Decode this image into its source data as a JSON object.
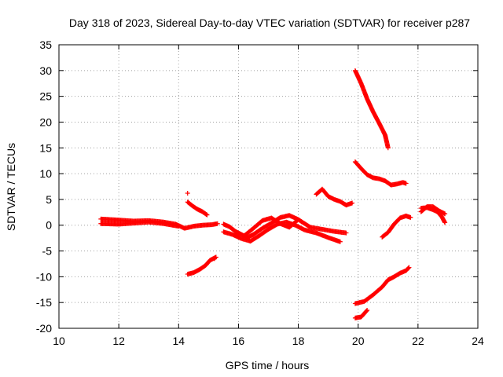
{
  "chart_data": {
    "type": "scatter",
    "title": "Day 318 of 2023, Sidereal Day-to-day VTEC variation (SDTVAR) for receiver p287",
    "xlabel": "GPS time / hours",
    "ylabel": "SDTVAR / TECUs",
    "xlim": [
      10,
      24
    ],
    "ylim": [
      -20,
      35
    ],
    "xticks": [
      10,
      12,
      14,
      16,
      18,
      20,
      22,
      24
    ],
    "yticks": [
      -20,
      -15,
      -10,
      -5,
      0,
      5,
      10,
      15,
      20,
      25,
      30,
      35
    ],
    "grid": true,
    "marker": "+",
    "color": "#ff0000",
    "series": [
      {
        "x": [
          11.4,
          12.0,
          12.5,
          13.0,
          13.5,
          13.9,
          14.2,
          14.5,
          14.8,
          15.1,
          15.3
        ],
        "y": [
          1.2,
          1.0,
          0.8,
          0.9,
          0.6,
          0.2,
          -0.6,
          -0.2,
          0.0,
          0.1,
          0.3
        ]
      },
      {
        "x": [
          11.4,
          12.0,
          12.5,
          13.0,
          13.5,
          14.0
        ],
        "y": [
          0.3,
          0.2,
          0.4,
          0.6,
          0.3,
          -0.2
        ]
      },
      {
        "x": [
          14.3,
          14.45,
          14.6,
          14.8,
          14.95
        ],
        "y": [
          4.5,
          3.8,
          3.2,
          2.6,
          2.0
        ]
      },
      {
        "x": [
          14.3,
          14.5,
          14.7,
          14.9,
          15.05,
          15.25
        ],
        "y": [
          -9.5,
          -9.2,
          -8.6,
          -7.8,
          -6.8,
          -6.2
        ]
      },
      {
        "x": [
          15.5,
          15.7,
          15.9,
          16.1,
          16.3,
          16.5,
          16.8,
          17.1,
          17.4,
          17.7,
          18.0,
          18.4,
          18.8,
          19.2,
          19.6
        ],
        "y": [
          0.2,
          -0.3,
          -1.2,
          -1.8,
          -2.4,
          -1.8,
          -0.6,
          0.4,
          1.5,
          1.9,
          1.1,
          -0.4,
          -0.8,
          -1.2,
          -1.5
        ]
      },
      {
        "x": [
          15.5,
          15.8,
          16.1,
          16.4,
          16.7,
          17.0,
          17.3,
          17.6,
          17.9,
          18.2,
          18.6,
          19.0,
          19.4
        ],
        "y": [
          -1.3,
          -1.8,
          -2.6,
          -3.1,
          -2.0,
          -0.8,
          0.2,
          0.6,
          0.0,
          -0.9,
          -1.5,
          -2.4,
          -3.2
        ]
      },
      {
        "x": [
          16.2,
          16.5,
          16.8,
          17.1,
          17.4,
          17.7,
          18.0
        ],
        "y": [
          -2.0,
          -0.6,
          0.9,
          1.4,
          0.3,
          -0.4,
          1.1
        ]
      },
      {
        "x": [
          18.6,
          18.8,
          19.0,
          19.2,
          19.4,
          19.6,
          19.8
        ],
        "y": [
          6.0,
          7.0,
          5.6,
          5.0,
          4.6,
          3.9,
          4.3
        ]
      },
      {
        "x": [
          19.9,
          20.1,
          20.3,
          20.5,
          20.7,
          20.9,
          21.0
        ],
        "y": [
          30.0,
          27.5,
          24.5,
          22.0,
          19.8,
          17.5,
          15.0
        ]
      },
      {
        "x": [
          19.9,
          20.1,
          20.3,
          20.5,
          20.7,
          20.9,
          21.1,
          21.3,
          21.5,
          21.6
        ],
        "y": [
          12.3,
          11.0,
          9.8,
          9.2,
          9.0,
          8.6,
          7.8,
          8.0,
          8.3,
          8.1
        ]
      },
      {
        "x": [
          19.9,
          20.1,
          20.3
        ],
        "y": [
          -18.0,
          -17.8,
          -16.5
        ]
      },
      {
        "x": [
          19.9,
          20.2,
          20.5,
          20.8,
          21.0,
          21.2,
          21.4,
          21.6,
          21.7
        ],
        "y": [
          -15.2,
          -14.8,
          -13.5,
          -12.0,
          -10.6,
          -10.0,
          -9.3,
          -8.8,
          -8.2
        ]
      },
      {
        "x": [
          20.8,
          21.0,
          21.2,
          21.4,
          21.6,
          21.75
        ],
        "y": [
          -2.3,
          -1.4,
          0.2,
          1.4,
          1.8,
          1.5
        ]
      },
      {
        "x": [
          22.1,
          22.3,
          22.5,
          22.65,
          22.8,
          22.9
        ],
        "y": [
          3.3,
          3.4,
          3.0,
          2.6,
          1.6,
          0.5
        ]
      },
      {
        "x": [
          22.1,
          22.3,
          22.5,
          22.7,
          22.9
        ],
        "y": [
          2.6,
          3.6,
          3.6,
          2.8,
          2.2
        ]
      }
    ],
    "outliers": [
      {
        "x": 14.3,
        "y": 6.2
      },
      {
        "x": 15.2,
        "y": -6.5
      },
      {
        "x": 16.2,
        "y": -2.0
      }
    ]
  }
}
